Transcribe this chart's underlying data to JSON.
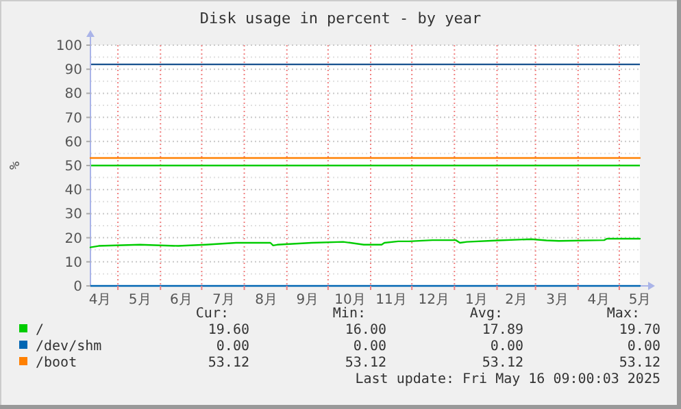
{
  "chart_data": {
    "type": "line",
    "title": "Disk usage in percent - by year",
    "ylabel": "%",
    "xlim": [
      "2024-04-11",
      "2025-05-16"
    ],
    "xticks": [
      {
        "value": "2024-04-18",
        "label": "4月"
      },
      {
        "value": "2024-05-01",
        "label": null
      },
      {
        "value": "2024-05-17",
        "label": "5月"
      },
      {
        "value": "2024-06-01",
        "label": null
      },
      {
        "value": "2024-06-16",
        "label": "6月"
      },
      {
        "value": "2024-07-01",
        "label": null
      },
      {
        "value": "2024-07-17",
        "label": "7月"
      },
      {
        "value": "2024-08-01",
        "label": null
      },
      {
        "value": "2024-08-17",
        "label": "8月"
      },
      {
        "value": "2024-09-01",
        "label": null
      },
      {
        "value": "2024-09-16",
        "label": "9月"
      },
      {
        "value": "2024-10-01",
        "label": null
      },
      {
        "value": "2024-10-17",
        "label": "10月"
      },
      {
        "value": "2024-11-01",
        "label": null
      },
      {
        "value": "2024-11-16",
        "label": "11月"
      },
      {
        "value": "2024-12-01",
        "label": null
      },
      {
        "value": "2024-12-17",
        "label": "12月"
      },
      {
        "value": "2025-01-01",
        "label": null
      },
      {
        "value": "2025-01-17",
        "label": "1月"
      },
      {
        "value": "2025-02-01",
        "label": null
      },
      {
        "value": "2025-02-15",
        "label": "2月"
      },
      {
        "value": "2025-03-01",
        "label": null
      },
      {
        "value": "2025-03-17",
        "label": "3月"
      },
      {
        "value": "2025-04-01",
        "label": null
      },
      {
        "value": "2025-04-16",
        "label": "4月"
      },
      {
        "value": "2025-05-01",
        "label": null
      },
      {
        "value": "2025-05-16",
        "label": "5月"
      }
    ],
    "ylim": [
      0,
      100
    ],
    "yticks": [
      0,
      {
        "value": 5,
        "label": null
      },
      10,
      {
        "value": 15,
        "label": null
      },
      20,
      {
        "value": 25,
        "label": null
      },
      30,
      {
        "value": 35,
        "label": null
      },
      40,
      {
        "value": 45,
        "label": null
      },
      50,
      {
        "value": 55,
        "label": null
      },
      60,
      {
        "value": 65,
        "label": null
      },
      70,
      {
        "value": 75,
        "label": null
      },
      80,
      {
        "value": 85,
        "label": null
      },
      90,
      {
        "value": 95,
        "label": null
      },
      100
    ],
    "grid": true,
    "legend": "bottom",
    "series": [
      {
        "name": "/",
        "color": "#00cc00",
        "x": [
          "2024-04-11",
          "2024-04-17",
          "2024-05-17",
          "2024-06-14",
          "2024-07-04",
          "2024-07-26",
          "2024-08-20",
          "2024-08-22",
          "2024-08-25",
          "2024-09-19",
          "2024-10-12",
          "2024-10-27",
          "2024-11-09",
          "2024-11-11",
          "2024-11-21",
          "2024-11-29",
          "2024-12-16",
          "2025-01-02",
          "2025-01-05",
          "2025-01-10",
          "2025-02-02",
          "2025-02-26",
          "2025-03-09",
          "2025-03-18",
          "2025-04-20",
          "2025-04-22",
          "2025-05-16"
        ],
        "values": [
          16.0,
          16.6,
          17.1,
          16.6,
          17.1,
          17.9,
          17.9,
          16.8,
          17.1,
          17.9,
          18.3,
          17.1,
          17.1,
          17.9,
          18.5,
          18.5,
          19.0,
          19.0,
          17.9,
          18.3,
          18.9,
          19.4,
          18.9,
          18.7,
          19.0,
          19.6,
          19.6
        ]
      },
      {
        "name": "/dev/shm",
        "color": "#0066b3",
        "x": [
          "2024-04-11",
          "2025-05-16"
        ],
        "values": [
          0,
          0
        ]
      },
      {
        "name": "/boot",
        "color": "#ff8000",
        "x": [
          "2024-04-11",
          "2025-05-16"
        ],
        "values": [
          53.12,
          53.12
        ]
      }
    ],
    "ref_lines": [
      {
        "axis": "y",
        "value": 92,
        "color": "#154f8d"
      },
      {
        "axis": "y",
        "value": 50,
        "color": "#00cc00"
      }
    ],
    "annotations": [
      "Cur:",
      "Min:",
      "Avg:",
      "Max:",
      "19.60",
      "16.00",
      "17.89",
      "19.70",
      "0.00",
      "0.00",
      "0.00",
      "0.00",
      "53.12",
      "53.12",
      "53.12",
      "53.12",
      "Last update: Fri May 16 09:00:03 2025"
    ]
  }
}
